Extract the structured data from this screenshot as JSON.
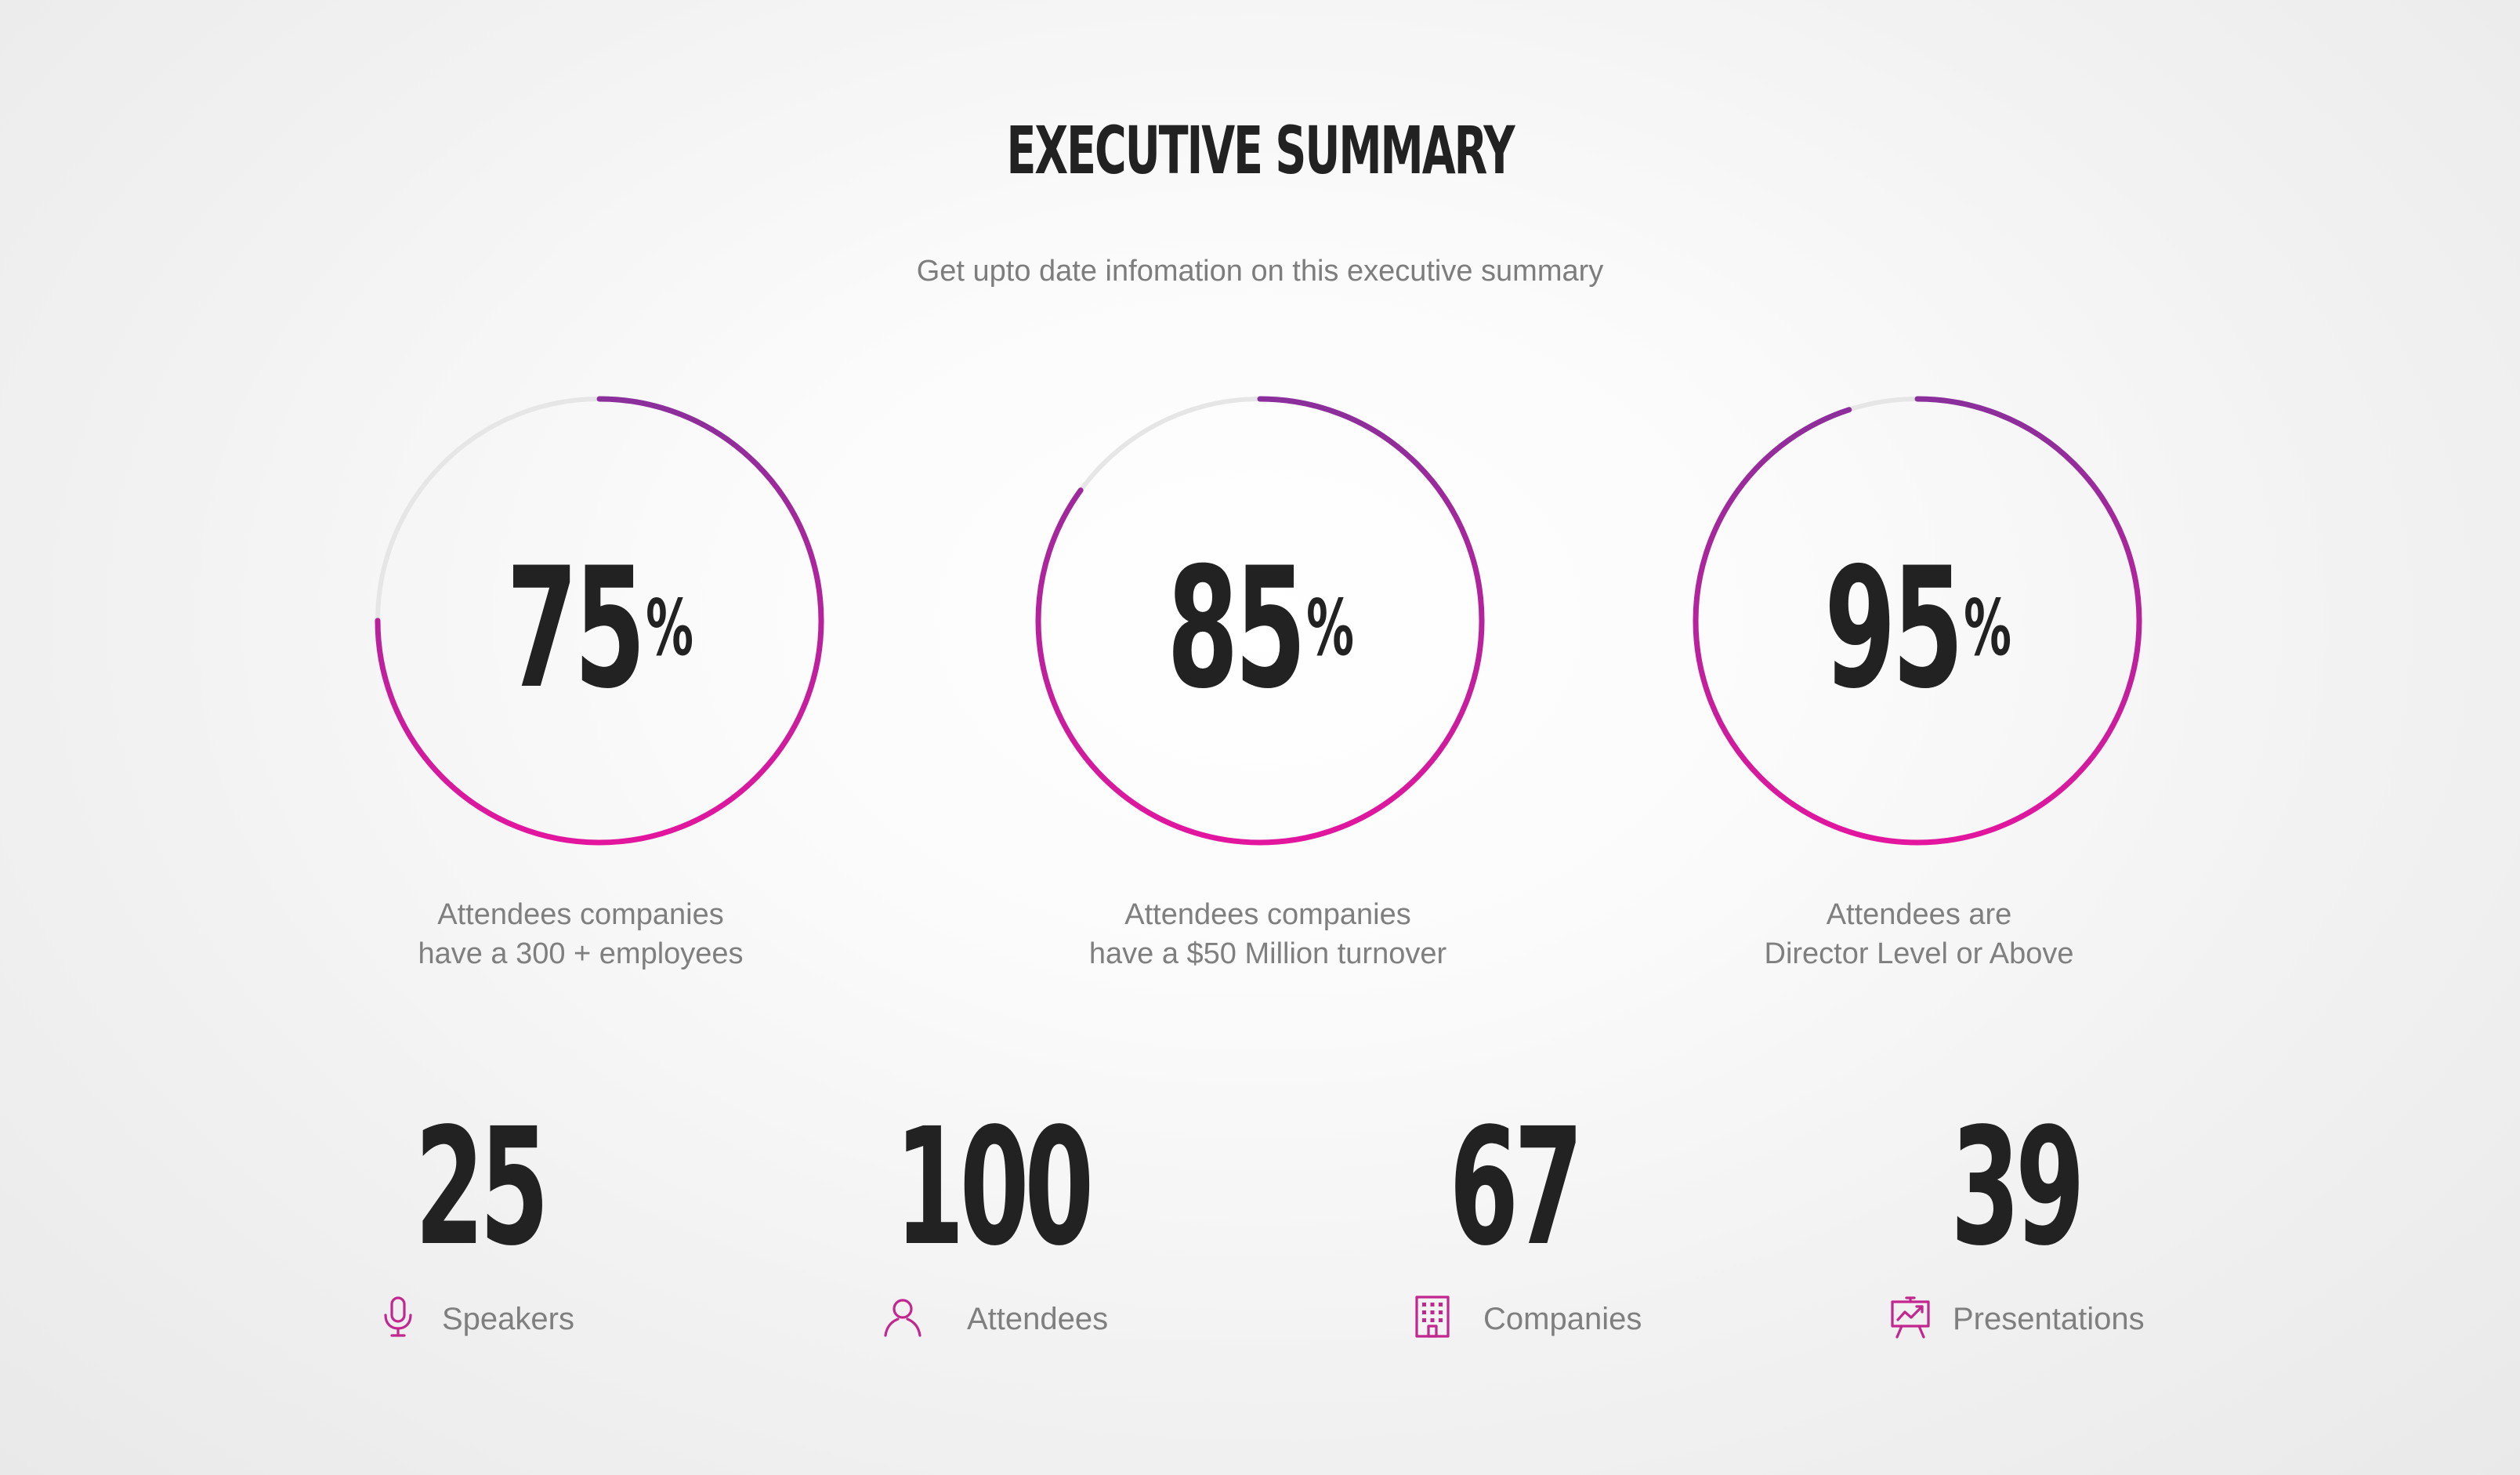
{
  "header": {
    "title": "EXECUTIVE SUMMARY",
    "subtitle": "Get upto date infomation on this executive summary"
  },
  "colors": {
    "gradient_start": "#e3169e",
    "gradient_end": "#8a2f9b",
    "track": "#e6e6e6",
    "text_dark": "#222222",
    "text_muted": "#7f7f7f"
  },
  "rings": [
    {
      "value": "75",
      "unit": "%",
      "percent": 75,
      "caption_line1": "Attendees companies",
      "caption_line2": "have a 300 + employees"
    },
    {
      "value": "85",
      "unit": "%",
      "percent": 85,
      "caption_line1": "Attendees companies",
      "caption_line2": "have a $50 Million turnover"
    },
    {
      "value": "95",
      "unit": "%",
      "percent": 95,
      "caption_line1": "Attendees are",
      "caption_line2": "Director Level or Above"
    }
  ],
  "stats": [
    {
      "value": "25",
      "label": "Speakers",
      "icon": "microphone-icon"
    },
    {
      "value": "100",
      "label": "Attendees",
      "icon": "user-icon"
    },
    {
      "value": "67",
      "label": "Companies",
      "icon": "building-icon"
    },
    {
      "value": "39",
      "label": "Presentations",
      "icon": "presentation-board-icon"
    }
  ]
}
